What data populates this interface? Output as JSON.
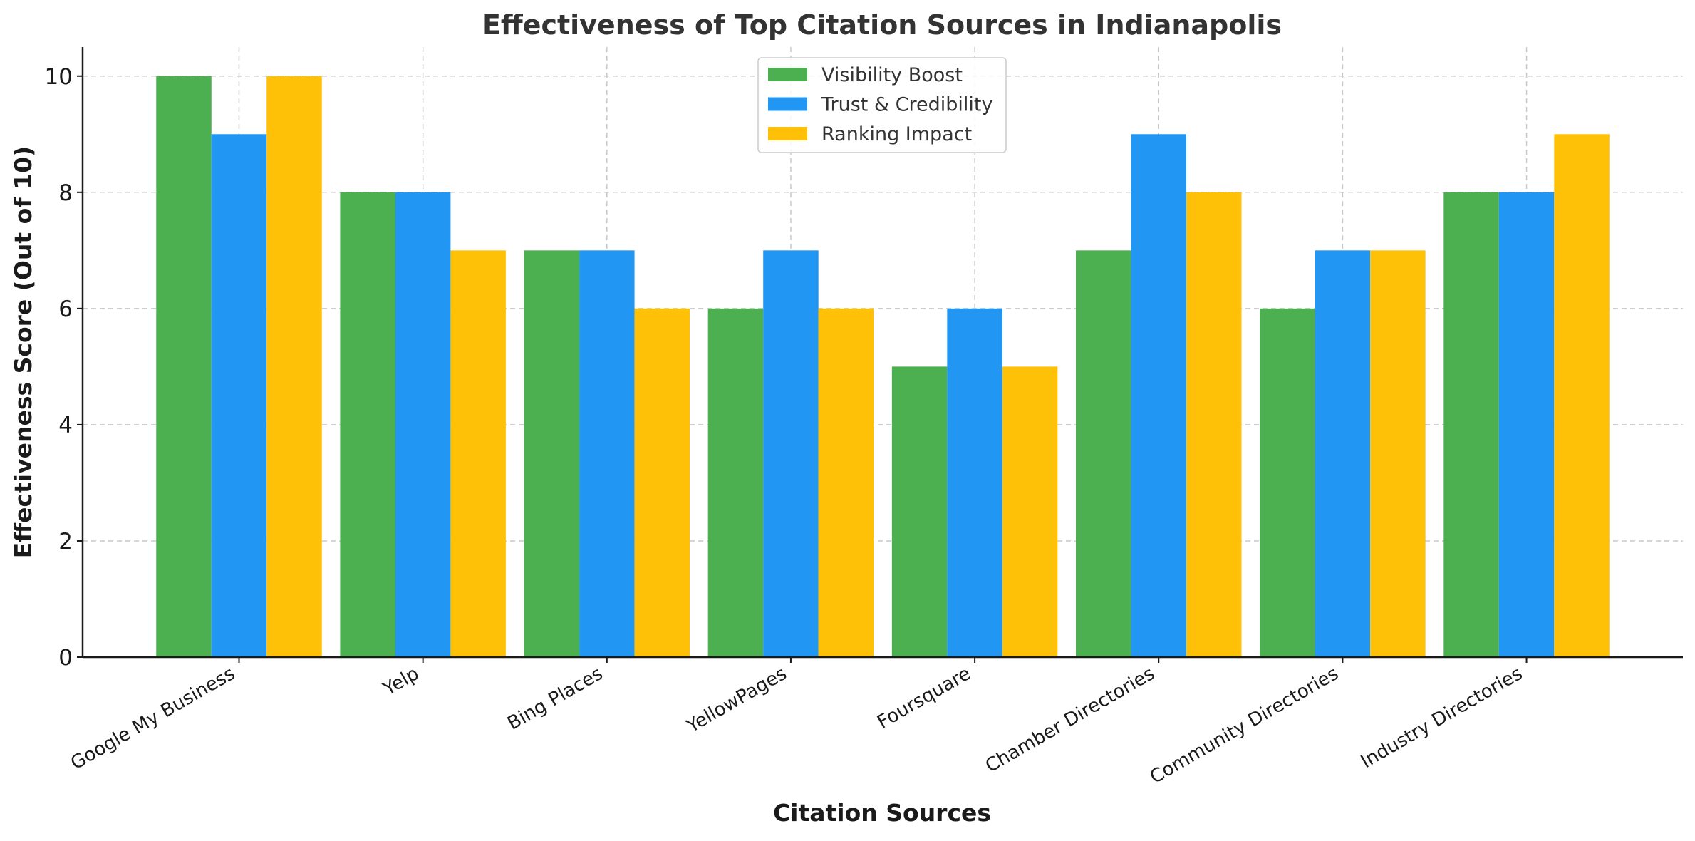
{
  "chart_data": {
    "type": "bar",
    "title": "Effectiveness of Top Citation Sources in Indianapolis",
    "xlabel": "Citation Sources",
    "ylabel": "Effectiveness Score (Out of 10)",
    "ylim": [
      0,
      10.5
    ],
    "yticks": [
      0,
      2,
      4,
      6,
      8,
      10
    ],
    "grid": true,
    "legend_position": "top-center",
    "categories": [
      "Google My Business",
      "Yelp",
      "Bing Places",
      "YellowPages",
      "Foursquare",
      "Chamber Directories",
      "Community Directories",
      "Industry Directories"
    ],
    "series": [
      {
        "name": "Visibility Boost",
        "color": "#4caf50",
        "values": [
          10,
          8,
          7,
          6,
          5,
          7,
          6,
          8
        ]
      },
      {
        "name": "Trust & Credibility",
        "color": "#2196f3",
        "values": [
          9,
          8,
          7,
          7,
          6,
          9,
          7,
          8
        ]
      },
      {
        "name": "Ranking Impact",
        "color": "#ffc107",
        "values": [
          10,
          7,
          6,
          6,
          5,
          8,
          7,
          9
        ]
      }
    ]
  }
}
